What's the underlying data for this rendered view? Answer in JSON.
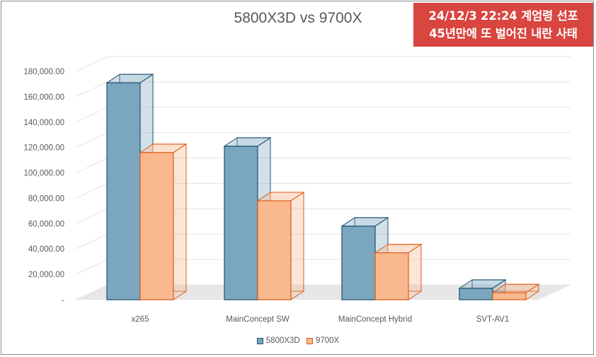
{
  "banner": {
    "line1": "24/12/3 22:24 계엄령 선포",
    "line2": "45년만에 또 벌어진 내란 사태",
    "color": "#d9453f"
  },
  "chart_data": {
    "type": "bar",
    "title": "5800X3D vs 9700X",
    "categories": [
      "x265",
      "MainConcept SW",
      "MainConcept Hybrid",
      "SVT-AV1"
    ],
    "series": [
      {
        "name": "5800X3D",
        "values": [
          171000,
          121000,
          58000,
          9000
        ],
        "fill": "#7aa6bf",
        "stroke": "#1f5070"
      },
      {
        "name": "9700X",
        "values": [
          116000,
          78000,
          37000,
          5500
        ],
        "fill": "#f9b88e",
        "stroke": "#dd5a16"
      }
    ],
    "y_ticks": [
      "-",
      "20,000.00",
      "40,000.00",
      "60,000.00",
      "80,000.00",
      "100,000.00",
      "120,000.00",
      "140,000.00",
      "160,000.00",
      "180,000.00"
    ],
    "ylim": [
      0,
      180000
    ],
    "grid": true,
    "legend_position": "bottom",
    "style": "3d-column"
  }
}
